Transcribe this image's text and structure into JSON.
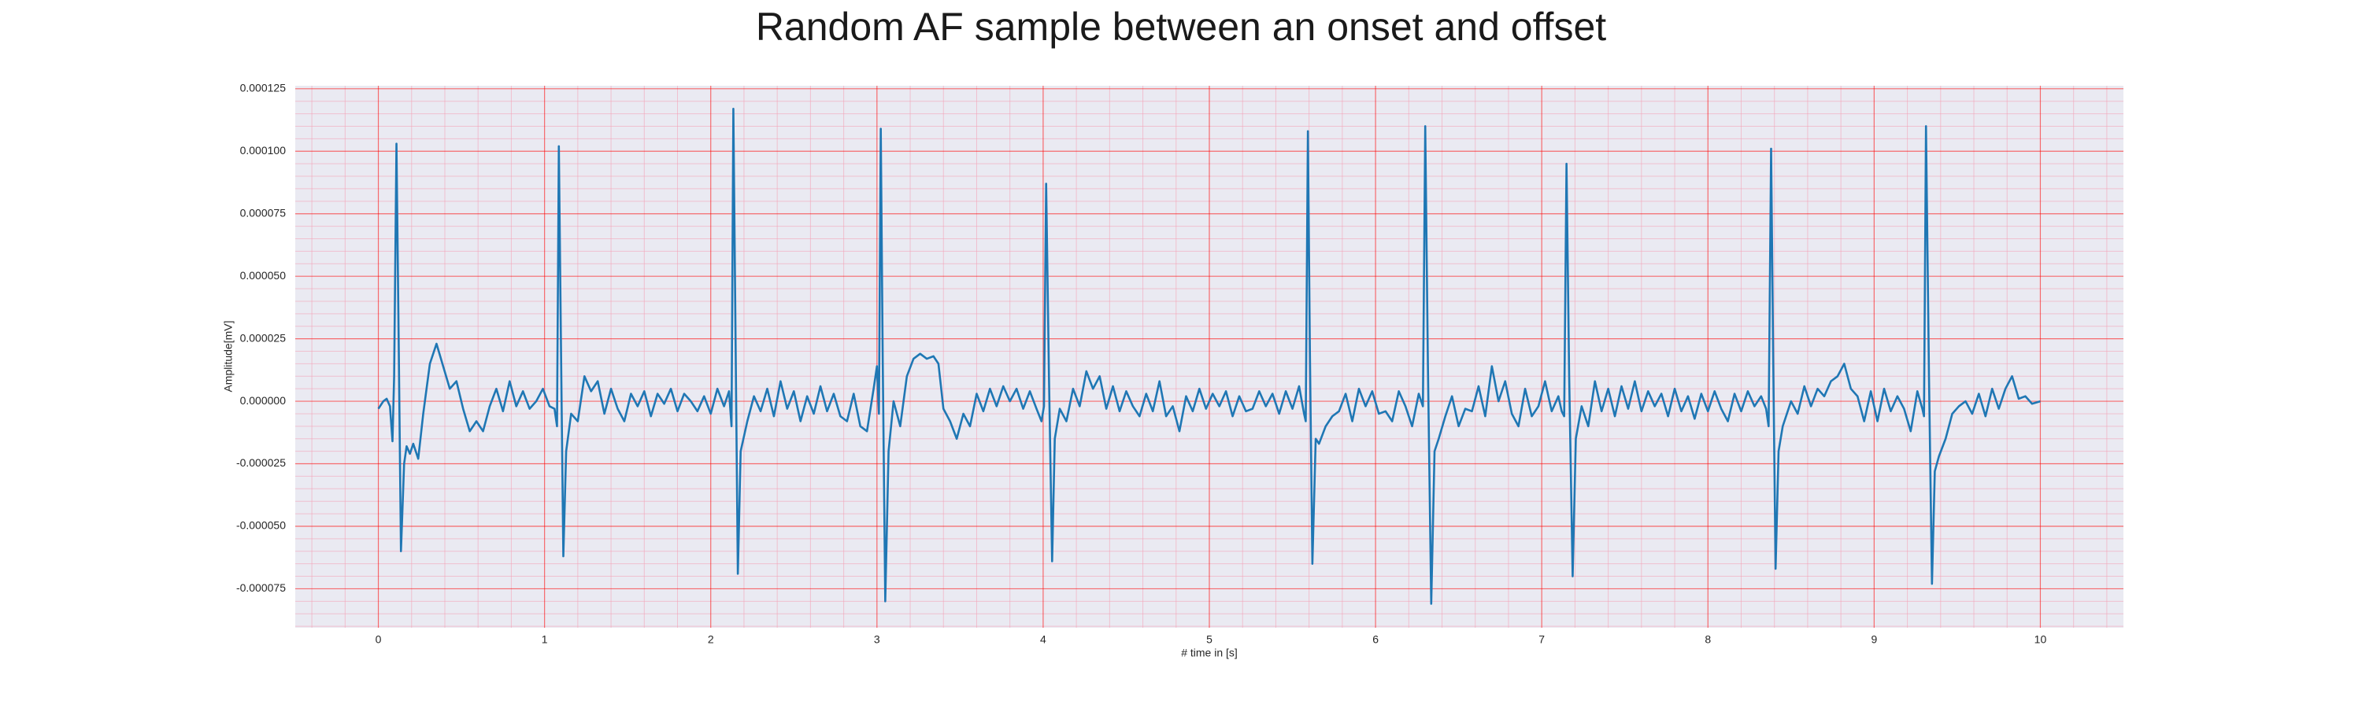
{
  "chart_data": {
    "type": "line",
    "title": "Random AF sample between an onset and offset",
    "xlabel": "# time in [s]",
    "ylabel": "Amplitude[mV]",
    "color": "#1f77b4",
    "grid": true,
    "minor_grid": true,
    "grid_color": "#ff0000",
    "minor_grid_color": "#f4a3b8",
    "background": "#eaeaf2",
    "xlim": [
      -0.5,
      10.5
    ],
    "ylim": [
      -9.06e-05,
      0.0001262
    ],
    "xticks": [
      0,
      1,
      2,
      3,
      4,
      5,
      6,
      7,
      8,
      9,
      10
    ],
    "yticks": [
      -7.5e-05,
      {
        "value": -5e-05,
        "label": "-0.000050"
      },
      -2.5e-05,
      {
        "value": 0,
        "label": "0.000000"
      },
      2.5e-05,
      {
        "value": 5e-05,
        "label": "0.000050"
      },
      7.5e-05,
      {
        "value": 0.0001,
        "label": "0.000100"
      },
      0.000125
    ],
    "x": [
      0,
      0.03,
      0.05,
      0.07,
      0.085,
      0.095,
      0.109,
      0.123,
      0.136,
      0.155,
      0.17,
      0.19,
      0.21,
      0.24,
      0.27,
      0.31,
      0.35,
      0.39,
      0.43,
      0.47,
      0.51,
      0.55,
      0.59,
      0.63,
      0.67,
      0.71,
      0.75,
      0.79,
      0.83,
      0.87,
      0.91,
      0.95,
      0.99,
      1.03,
      1.06,
      1.075,
      1.086,
      1.1,
      1.113,
      1.13,
      1.16,
      1.2,
      1.24,
      1.28,
      1.32,
      1.36,
      1.4,
      1.44,
      1.48,
      1.52,
      1.56,
      1.6,
      1.64,
      1.68,
      1.72,
      1.76,
      1.8,
      1.84,
      1.88,
      1.92,
      1.96,
      2.0,
      2.04,
      2.08,
      2.11,
      2.125,
      2.136,
      2.15,
      2.163,
      2.18,
      2.22,
      2.26,
      2.3,
      2.34,
      2.38,
      2.42,
      2.46,
      2.5,
      2.54,
      2.58,
      2.62,
      2.66,
      2.7,
      2.74,
      2.78,
      2.82,
      2.86,
      2.9,
      2.94,
      2.98,
      3.0,
      3.012,
      3.023,
      3.035,
      3.05,
      3.07,
      3.1,
      3.14,
      3.18,
      3.22,
      3.26,
      3.3,
      3.34,
      3.37,
      3.4,
      3.44,
      3.48,
      3.52,
      3.56,
      3.6,
      3.64,
      3.68,
      3.72,
      3.76,
      3.8,
      3.84,
      3.88,
      3.92,
      3.96,
      3.99,
      4.005,
      4.018,
      4.035,
      4.054,
      4.07,
      4.1,
      4.14,
      4.18,
      4.22,
      4.26,
      4.3,
      4.34,
      4.38,
      4.42,
      4.46,
      4.5,
      4.54,
      4.58,
      4.62,
      4.66,
      4.7,
      4.74,
      4.78,
      4.82,
      4.86,
      4.9,
      4.94,
      4.98,
      5.02,
      5.06,
      5.1,
      5.14,
      5.18,
      5.22,
      5.26,
      5.3,
      5.34,
      5.38,
      5.42,
      5.46,
      5.5,
      5.54,
      5.57,
      5.58,
      5.593,
      5.605,
      5.62,
      5.64,
      5.66,
      5.7,
      5.74,
      5.78,
      5.82,
      5.86,
      5.9,
      5.94,
      5.98,
      6.02,
      6.06,
      6.1,
      6.14,
      6.18,
      6.22,
      6.26,
      6.285,
      6.299,
      6.315,
      6.335,
      6.355,
      6.38,
      6.42,
      6.46,
      6.5,
      6.54,
      6.58,
      6.62,
      6.66,
      6.7,
      6.74,
      6.78,
      6.82,
      6.86,
      6.9,
      6.94,
      6.98,
      7.02,
      7.06,
      7.1,
      7.12,
      7.135,
      7.149,
      7.165,
      7.186,
      7.205,
      7.24,
      7.28,
      7.32,
      7.36,
      7.4,
      7.44,
      7.48,
      7.52,
      7.56,
      7.6,
      7.64,
      7.68,
      7.72,
      7.76,
      7.8,
      7.84,
      7.88,
      7.92,
      7.96,
      8.0,
      8.04,
      8.08,
      8.12,
      8.16,
      8.2,
      8.24,
      8.28,
      8.32,
      8.35,
      8.365,
      8.38,
      8.393,
      8.407,
      8.425,
      8.45,
      8.5,
      8.54,
      8.58,
      8.62,
      8.66,
      8.7,
      8.74,
      8.78,
      8.82,
      8.86,
      8.9,
      8.94,
      8.98,
      9.02,
      9.06,
      9.1,
      9.14,
      9.18,
      9.22,
      9.26,
      9.29,
      9.3,
      9.312,
      9.33,
      9.348,
      9.365,
      9.39,
      9.43,
      9.47,
      9.51,
      9.55,
      9.59,
      9.63,
      9.67,
      9.71,
      9.75,
      9.79,
      9.83,
      9.87,
      9.91,
      9.95,
      10
    ],
    "values": [
      -3e-06,
      0,
      1e-06,
      -2e-06,
      -1.6e-05,
      1e-05,
      0.000103,
      2e-05,
      -6e-05,
      -2.5e-05,
      -1.8e-05,
      -2.1e-05,
      -1.7e-05,
      -2.3e-05,
      -5e-06,
      1.5e-05,
      2.3e-05,
      1.4e-05,
      5e-06,
      8e-06,
      -3e-06,
      -1.2e-05,
      -8e-06,
      -1.2e-05,
      -2e-06,
      5e-06,
      -4e-06,
      8e-06,
      -2e-06,
      4e-06,
      -3e-06,
      0,
      5e-06,
      -2e-06,
      -3e-06,
      -1e-05,
      0.000102,
      1.5e-05,
      -6.2e-05,
      -2e-05,
      -5e-06,
      -8e-06,
      1e-05,
      4e-06,
      8e-06,
      -5e-06,
      5e-06,
      -3e-06,
      -8e-06,
      3e-06,
      -2e-06,
      4e-06,
      -6e-06,
      3e-06,
      -1e-06,
      5e-06,
      -4e-06,
      3e-06,
      0,
      -4e-06,
      2e-06,
      -5e-06,
      5e-06,
      -2e-06,
      4e-06,
      -1e-05,
      0.000117,
      2e-05,
      -6.9e-05,
      -2e-05,
      -8e-06,
      2e-06,
      -4e-06,
      5e-06,
      -6e-06,
      8e-06,
      -3e-06,
      4e-06,
      -8e-06,
      2e-06,
      -5e-06,
      6e-06,
      -4e-06,
      3e-06,
      -6e-06,
      -8e-06,
      3e-06,
      -1e-05,
      -1.2e-05,
      5e-06,
      1.4e-05,
      -5e-06,
      0.000109,
      1.5e-05,
      -8e-05,
      -2e-05,
      0,
      -1e-05,
      1e-05,
      1.7e-05,
      1.9e-05,
      1.7e-05,
      1.8e-05,
      1.5e-05,
      -3e-06,
      -8e-06,
      -1.5e-05,
      -5e-06,
      -1e-05,
      3e-06,
      -4e-06,
      5e-06,
      -2e-06,
      6e-06,
      0,
      5e-06,
      -3e-06,
      4e-06,
      -3e-06,
      -8e-06,
      -2e-06,
      8.7e-05,
      1e-05,
      -6.4e-05,
      -1.5e-05,
      -3e-06,
      -8e-06,
      5e-06,
      -2e-06,
      1.2e-05,
      5e-06,
      1e-05,
      -3e-06,
      6e-06,
      -4e-06,
      4e-06,
      -2e-06,
      -6e-06,
      3e-06,
      -4e-06,
      8e-06,
      -6e-06,
      -2e-06,
      -1.2e-05,
      2e-06,
      -4e-06,
      5e-06,
      -3e-06,
      3e-06,
      -2e-06,
      4e-06,
      -6e-06,
      2e-06,
      -4e-06,
      -3e-06,
      4e-06,
      -2e-06,
      3e-06,
      -5e-06,
      4e-06,
      -3e-06,
      6e-06,
      -5e-06,
      -8e-06,
      0.000108,
      2e-05,
      -6.5e-05,
      -1.5e-05,
      -1.7e-05,
      -1e-05,
      -6e-06,
      -4e-06,
      3e-06,
      -8e-06,
      5e-06,
      -2e-06,
      4e-06,
      -5e-06,
      -4e-06,
      -8e-06,
      4e-06,
      -2e-06,
      -1e-05,
      3e-06,
      -2e-06,
      0.00011,
      1.5e-05,
      -8.1e-05,
      -2e-05,
      -1.5e-05,
      -6e-06,
      2e-06,
      -1e-05,
      -3e-06,
      -4e-06,
      6e-06,
      -6e-06,
      1.4e-05,
      0,
      8e-06,
      -5e-06,
      -1e-05,
      5e-06,
      -6e-06,
      -2e-06,
      8e-06,
      -4e-06,
      2e-06,
      -4e-06,
      -6e-06,
      9.5e-05,
      1e-05,
      -7e-05,
      -1.5e-05,
      -2e-06,
      -1e-05,
      8e-06,
      -4e-06,
      5e-06,
      -6e-06,
      6e-06,
      -3e-06,
      8e-06,
      -4e-06,
      4e-06,
      -2e-06,
      3e-06,
      -6e-06,
      5e-06,
      -4e-06,
      2e-06,
      -7e-06,
      3e-06,
      -4e-06,
      4e-06,
      -3e-06,
      -8e-06,
      3e-06,
      -4e-06,
      4e-06,
      -2e-06,
      2e-06,
      -3e-06,
      -1e-05,
      0.000101,
      1.5e-05,
      -6.7e-05,
      -2e-05,
      -1e-05,
      0,
      -5e-06,
      6e-06,
      -2e-06,
      5e-06,
      2e-06,
      8e-06,
      1e-05,
      1.5e-05,
      5e-06,
      2e-06,
      -8e-06,
      4e-06,
      -8e-06,
      5e-06,
      -4e-06,
      2e-06,
      -3e-06,
      -1.2e-05,
      4e-06,
      -3e-06,
      -6e-06,
      0.00011,
      1e-05,
      -7.3e-05,
      -2.8e-05,
      -2.2e-05,
      -1.5e-05,
      -5e-06,
      -2e-06,
      0,
      -5e-06,
      3e-06,
      -6e-06,
      5e-06,
      -3e-06,
      5e-06,
      1e-05,
      1e-06,
      2e-06,
      -1e-06,
      0
    ]
  }
}
